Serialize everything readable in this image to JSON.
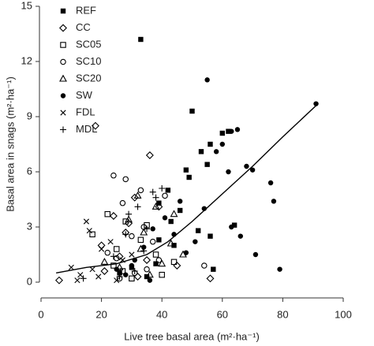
{
  "chart_data": {
    "type": "scatter",
    "x_label": "Live tree basal area  (m²·ha⁻¹)",
    "y_label": "Basal area in snags (m²·ha⁻¹)",
    "xlim": [
      0,
      100
    ],
    "ylim": [
      0,
      15
    ],
    "xticks": [
      0,
      20,
      40,
      60,
      80,
      100
    ],
    "yticks": [
      0,
      3,
      6,
      9,
      12,
      15
    ],
    "legend": "top-left",
    "series": [
      {
        "name": "REF",
        "marker": "filled-square",
        "color": "#000",
        "x": [
          33,
          50,
          60,
          62,
          56,
          53,
          55,
          48,
          42,
          49,
          39,
          46,
          43,
          39,
          56,
          64,
          57,
          26,
          35,
          38,
          30,
          44,
          52
        ],
        "values": [
          13.2,
          9.3,
          8.1,
          8.2,
          7.5,
          7.1,
          6.4,
          6.1,
          5.0,
          5.7,
          4.3,
          3.9,
          3.3,
          2.3,
          2.5,
          3.1,
          0.7,
          0.5,
          0.3,
          1.0,
          0.8,
          2.0,
          2.8
        ]
      },
      {
        "name": "CC",
        "marker": "diamond",
        "color": "#000",
        "x": [
          18,
          36,
          39,
          31,
          28,
          24,
          20,
          35,
          56,
          6,
          21,
          26,
          32,
          45,
          29
        ],
        "values": [
          8.5,
          6.9,
          4.1,
          4.6,
          2.7,
          3.6,
          2.0,
          1.2,
          0.2,
          0.1,
          0.6,
          1.4,
          0.3,
          0.9,
          3.2
        ]
      },
      {
        "name": "SC05",
        "marker": "square",
        "color": "#000",
        "x": [
          22,
          17,
          28,
          25,
          33,
          38,
          40,
          30,
          44,
          24,
          35,
          27
        ],
        "values": [
          3.7,
          2.6,
          3.3,
          1.8,
          2.3,
          1.5,
          0.4,
          0.2,
          1.1,
          0.9,
          3.1,
          0.6
        ]
      },
      {
        "name": "SC10",
        "marker": "circle",
        "color": "#000",
        "x": [
          24,
          28,
          33,
          41,
          27,
          34,
          30,
          37,
          25,
          54,
          31,
          39,
          26,
          35,
          22
        ],
        "values": [
          5.8,
          5.6,
          5.0,
          4.7,
          4.3,
          3.0,
          2.5,
          2.2,
          1.3,
          0.9,
          0.5,
          1.2,
          0.2,
          0.7,
          1.6
        ]
      },
      {
        "name": "SC20",
        "marker": "triangle",
        "color": "#000",
        "x": [
          32,
          38,
          44,
          29,
          34,
          43,
          21,
          47,
          26,
          36,
          33,
          40
        ],
        "values": [
          4.7,
          4.1,
          3.7,
          3.4,
          2.7,
          2.1,
          1.1,
          1.5,
          0.8,
          0.4,
          1.8,
          1.0
        ]
      },
      {
        "name": "SW",
        "marker": "filled-circle",
        "color": "#000",
        "x": [
          91,
          55,
          65,
          63,
          60,
          58,
          70,
          68,
          62,
          76,
          77,
          79,
          71,
          66,
          63,
          54,
          46,
          41,
          51,
          37,
          34,
          31,
          28,
          36,
          25,
          48,
          44,
          30
        ],
        "values": [
          9.7,
          11.0,
          8.3,
          8.2,
          7.5,
          7.1,
          6.1,
          6.3,
          6.0,
          5.4,
          4.4,
          0.7,
          1.5,
          2.5,
          3.0,
          4.0,
          4.4,
          3.5,
          2.2,
          2.9,
          1.9,
          1.2,
          0.4,
          0.1,
          0.7,
          1.6,
          2.6,
          0.9
        ]
      },
      {
        "name": "FDL",
        "marker": "cross",
        "color": "#000",
        "x": [
          15,
          10,
          13,
          16,
          20,
          12,
          27,
          17,
          23,
          30,
          19,
          25
        ],
        "values": [
          3.3,
          0.8,
          0.4,
          2.8,
          1.8,
          0.1,
          1.2,
          0.7,
          2.2,
          1.5,
          0.3,
          0.1
        ]
      },
      {
        "name": "MDL",
        "marker": "plus",
        "color": "#000",
        "x": [
          40,
          37,
          38,
          32,
          29,
          35,
          24,
          31,
          14,
          28,
          34,
          26
        ],
        "values": [
          5.1,
          4.9,
          4.6,
          4.1,
          3.7,
          2.9,
          1.4,
          0.6,
          0.2,
          2.6,
          1.7,
          0.3
        ]
      }
    ],
    "fit_line": {
      "color": "#000",
      "x": [
        5,
        15,
        25,
        35,
        42,
        50,
        60,
        70,
        80,
        91
      ],
      "values": [
        0.5,
        0.8,
        1.0,
        1.5,
        2.2,
        3.3,
        4.8,
        6.3,
        7.9,
        9.6
      ]
    }
  }
}
